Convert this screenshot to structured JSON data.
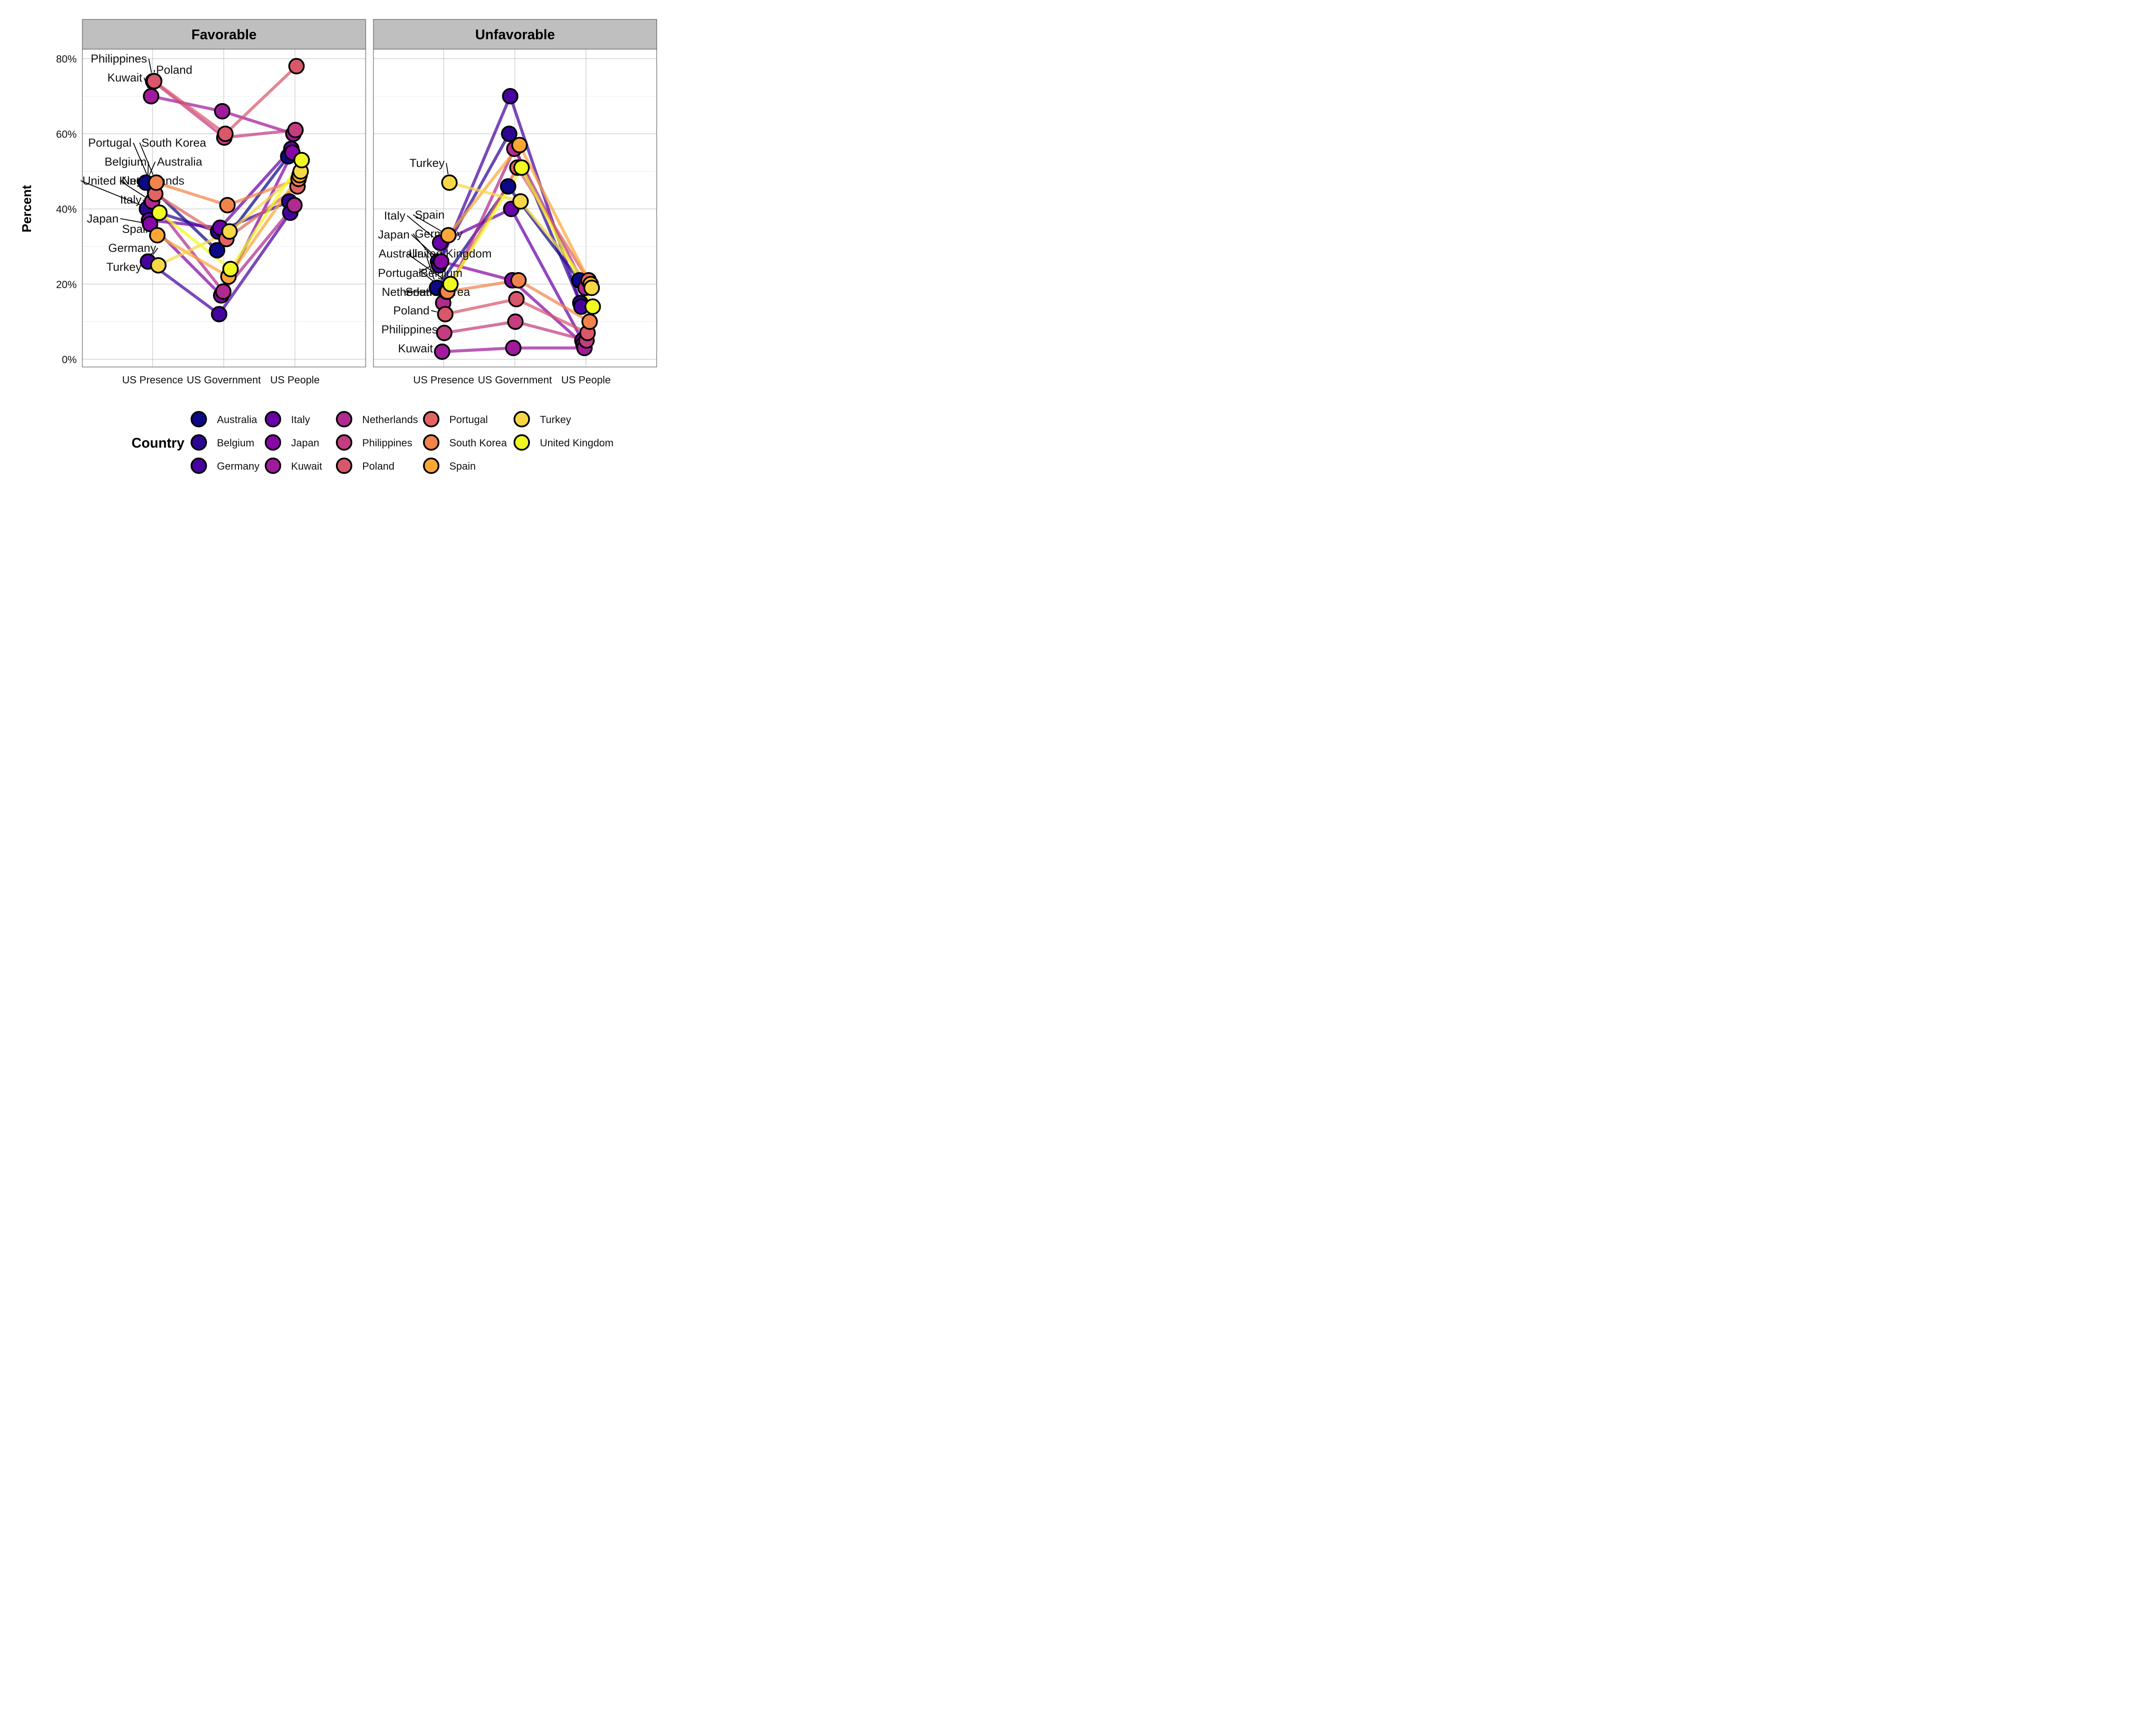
{
  "chart_data": {
    "type": "line",
    "ylabel": "Percent",
    "ylim": [
      0,
      85
    ],
    "yticks": [
      "0%",
      "20%",
      "40%",
      "60%",
      "80%"
    ],
    "categories": [
      "US Presence",
      "US Government",
      "US People"
    ],
    "legend_title": "Country",
    "legend_position": "bottom",
    "grid": true,
    "colors": {
      "Australia": "#0d0887",
      "Belgium": "#2c0594",
      "Germany": "#47039f",
      "Italy": "#6a00a8",
      "Japan": "#8707a6",
      "Kuwait": "#a01a9c",
      "Netherlands": "#b12a90",
      "Philippines": "#c33d80",
      "Poland": "#d8576b",
      "Portugal": "#e16462",
      "South Korea": "#f2844b",
      "Spain": "#fca636",
      "Turkey": "#f6d746",
      "United Kingdom": "#f0f921"
    },
    "panels": [
      {
        "name": "Favorable",
        "series": [
          {
            "name": "Australia",
            "values": [
              47,
              29,
              54
            ]
          },
          {
            "name": "Belgium",
            "values": [
              40,
              34,
              42
            ]
          },
          {
            "name": "Germany",
            "values": [
              26,
              12,
              39
            ]
          },
          {
            "name": "Italy",
            "values": [
              37,
              35,
              56
            ]
          },
          {
            "name": "Japan",
            "values": [
              36,
              17,
              55
            ]
          },
          {
            "name": "Kuwait",
            "values": [
              70,
              66,
              60
            ]
          },
          {
            "name": "Netherlands",
            "values": [
              42,
              18,
              41
            ]
          },
          {
            "name": "Philippines",
            "values": [
              74,
              59,
              61
            ]
          },
          {
            "name": "Poland",
            "values": [
              74,
              60,
              78
            ]
          },
          {
            "name": "Portugal",
            "values": [
              44,
              32,
              46
            ]
          },
          {
            "name": "South Korea",
            "values": [
              47,
              41,
              48
            ]
          },
          {
            "name": "Spain",
            "values": [
              33,
              22,
              49
            ]
          },
          {
            "name": "Turkey",
            "values": [
              25,
              34,
              50
            ]
          },
          {
            "name": "United Kingdom",
            "values": [
              39,
              24,
              53
            ]
          }
        ]
      },
      {
        "name": "Unfavorable",
        "series": [
          {
            "name": "Australia",
            "values": [
              19,
              46,
              21
            ]
          },
          {
            "name": "Belgium",
            "values": [
              26,
              60,
              15
            ]
          },
          {
            "name": "Germany",
            "values": [
              25,
              70,
              14
            ]
          },
          {
            "name": "Italy",
            "values": [
              31,
              40,
              5
            ]
          },
          {
            "name": "Japan",
            "values": [
              26,
              21,
              4
            ]
          },
          {
            "name": "Kuwait",
            "values": [
              2,
              3,
              3
            ]
          },
          {
            "name": "Netherlands",
            "values": [
              15,
              56,
              19
            ]
          },
          {
            "name": "Philippines",
            "values": [
              7,
              10,
              5
            ]
          },
          {
            "name": "Poland",
            "values": [
              12,
              16,
              7
            ]
          },
          {
            "name": "Portugal",
            "values": [
              18,
              51,
              21
            ]
          },
          {
            "name": "South Korea",
            "values": [
              18,
              21,
              10
            ]
          },
          {
            "name": "Spain",
            "values": [
              33,
              57,
              20
            ]
          },
          {
            "name": "Turkey",
            "values": [
              47,
              42,
              19
            ]
          },
          {
            "name": "United Kingdom",
            "values": [
              20,
              51,
              14
            ]
          }
        ]
      }
    ]
  }
}
